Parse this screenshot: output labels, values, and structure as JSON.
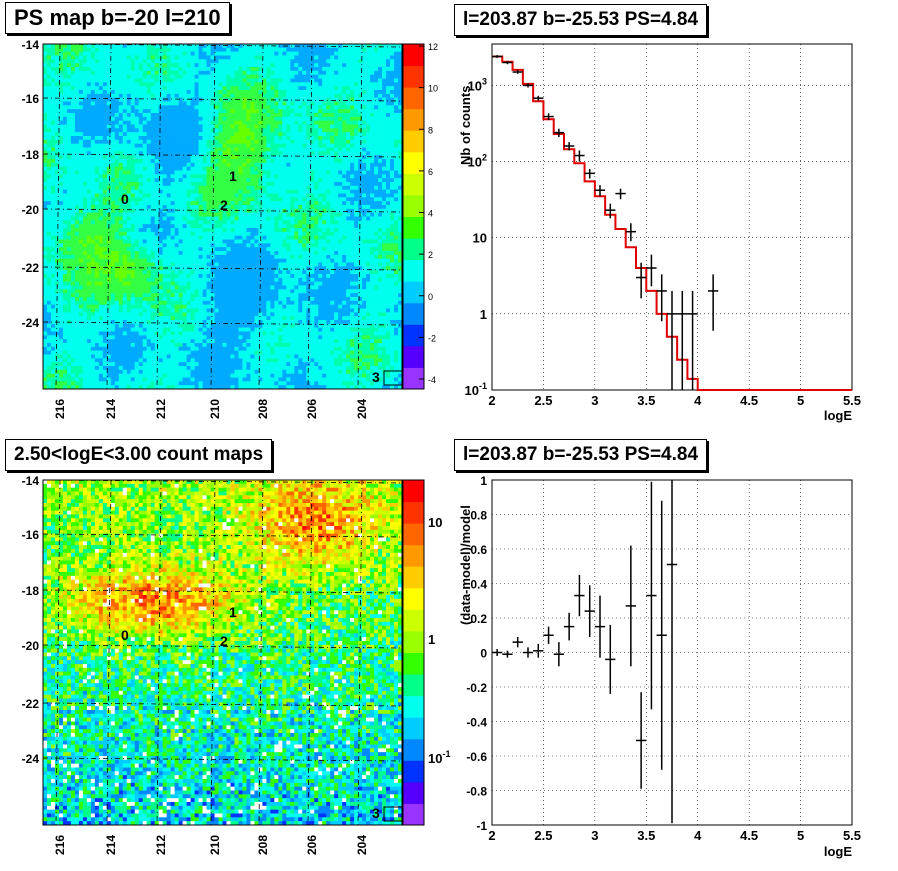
{
  "panels": {
    "tl_title": "PS map b=-20 l=210",
    "tr_title": "l=203.87 b=-25.53 PS=4.84",
    "bl_title": "2.50<logE<3.00 count maps",
    "br_title": "l=203.87 b=-25.53 PS=4.84"
  },
  "maps": {
    "x_ticks": [
      "216",
      "214",
      "212",
      "210",
      "208",
      "206",
      "204"
    ],
    "y_ticks": [
      "-14",
      "-16",
      "-18",
      "-20",
      "-22",
      "-24"
    ],
    "sources": [
      "0",
      "1",
      "2",
      "3"
    ],
    "ps_scale": [
      "12",
      "10",
      "8",
      "6",
      "4",
      "2",
      "0",
      "-2",
      "-4"
    ],
    "count_scale": [
      "10",
      "1",
      "10^-1"
    ]
  },
  "chart_data": [
    {
      "type": "step",
      "title": "l=203.87 b=-25.53 PS=4.84",
      "xlabel": "logE",
      "ylabel": "Nb of counts",
      "xlim": [
        2,
        5.5
      ],
      "ylim": [
        0.1,
        3500
      ],
      "log_y": true,
      "grid": true,
      "x_ticks": [
        "2",
        "2.5",
        "3",
        "3.5",
        "4",
        "4.5",
        "5",
        "5.5"
      ],
      "y_ticks": [
        "10^-1",
        "1",
        "10",
        "10^2",
        "10^3"
      ],
      "data_points": [
        {
          "x": 2.05,
          "y": 2400,
          "lo": 2300,
          "hi": 2500
        },
        {
          "x": 2.15,
          "y": 2000,
          "lo": 1900,
          "hi": 2100
        },
        {
          "x": 2.25,
          "y": 1500,
          "lo": 1420,
          "hi": 1580
        },
        {
          "x": 2.35,
          "y": 1000,
          "lo": 940,
          "hi": 1060
        },
        {
          "x": 2.45,
          "y": 680,
          "lo": 630,
          "hi": 730
        },
        {
          "x": 2.55,
          "y": 390,
          "lo": 350,
          "hi": 430
        },
        {
          "x": 2.65,
          "y": 240,
          "lo": 210,
          "hi": 270
        },
        {
          "x": 2.75,
          "y": 160,
          "lo": 140,
          "hi": 180
        },
        {
          "x": 2.85,
          "y": 120,
          "lo": 100,
          "hi": 140
        },
        {
          "x": 2.95,
          "y": 70,
          "lo": 60,
          "hi": 80
        },
        {
          "x": 3.05,
          "y": 42,
          "lo": 35,
          "hi": 49
        },
        {
          "x": 3.15,
          "y": 23,
          "lo": 18,
          "hi": 28
        },
        {
          "x": 3.25,
          "y": 38,
          "lo": 32,
          "hi": 44
        },
        {
          "x": 3.35,
          "y": 12,
          "lo": 9,
          "hi": 15.5
        },
        {
          "x": 3.45,
          "y": 3,
          "lo": 1.6,
          "hi": 4.7
        },
        {
          "x": 3.55,
          "y": 4,
          "lo": 2.3,
          "hi": 6
        },
        {
          "x": 3.65,
          "y": 2,
          "lo": 0.8,
          "hi": 3.3
        },
        {
          "x": 3.75,
          "y": 1,
          "lo": 0.1,
          "hi": 2
        },
        {
          "x": 3.85,
          "y": 1,
          "lo": 0.1,
          "hi": 2
        },
        {
          "x": 3.95,
          "y": 1,
          "lo": 0.1,
          "hi": 2
        },
        {
          "x": 4.15,
          "y": 2,
          "lo": 0.6,
          "hi": 3.3
        }
      ],
      "model_steps": [
        2400,
        2050,
        1600,
        1050,
        620,
        360,
        230,
        145,
        95,
        55,
        35,
        20,
        13,
        7.5,
        4,
        2,
        1,
        0.5,
        0.25,
        0.14,
        0.1,
        0.1,
        0.1,
        0.1,
        0.1,
        0.1,
        0.1,
        0.1,
        0.1,
        0.1,
        0.1,
        0.1,
        0.1,
        0.1,
        0.1
      ],
      "model_color": "#e00000"
    },
    {
      "type": "errorbar",
      "title": "l=203.87 b=-25.53 PS=4.84",
      "xlabel": "logE",
      "ylabel": "(data-model)/model",
      "xlim": [
        2,
        5.5
      ],
      "ylim": [
        -1,
        1
      ],
      "grid": true,
      "x_ticks": [
        "2",
        "2.5",
        "3",
        "3.5",
        "4",
        "4.5",
        "5",
        "5.5"
      ],
      "y_ticks": [
        "-1",
        "-0.8",
        "-0.6",
        "-0.4",
        "-0.2",
        "0",
        "0.2",
        "0.4",
        "0.6",
        "0.8",
        "1"
      ],
      "data_points": [
        {
          "x": 2.05,
          "y": 0.0,
          "e": 0.02
        },
        {
          "x": 2.15,
          "y": -0.01,
          "e": 0.02
        },
        {
          "x": 2.25,
          "y": 0.06,
          "e": 0.03
        },
        {
          "x": 2.35,
          "y": 0.0,
          "e": 0.03
        },
        {
          "x": 2.45,
          "y": 0.01,
          "e": 0.04
        },
        {
          "x": 2.55,
          "y": 0.1,
          "e": 0.05
        },
        {
          "x": 2.65,
          "y": -0.01,
          "e": 0.07
        },
        {
          "x": 2.75,
          "y": 0.15,
          "e": 0.08
        },
        {
          "x": 2.85,
          "y": 0.33,
          "e": 0.12
        },
        {
          "x": 2.95,
          "y": 0.24,
          "e": 0.15
        },
        {
          "x": 3.05,
          "y": 0.15,
          "e": 0.18
        },
        {
          "x": 3.15,
          "y": -0.04,
          "e": 0.2
        },
        {
          "x": 3.35,
          "y": 0.27,
          "e": 0.35
        },
        {
          "x": 3.45,
          "y": -0.51,
          "e": 0.28
        },
        {
          "x": 3.55,
          "y": 0.33,
          "e": 0.66
        },
        {
          "x": 3.65,
          "y": 0.1,
          "e": 0.78
        },
        {
          "x": 3.75,
          "y": 0.51,
          "e": 1.5
        }
      ]
    }
  ]
}
